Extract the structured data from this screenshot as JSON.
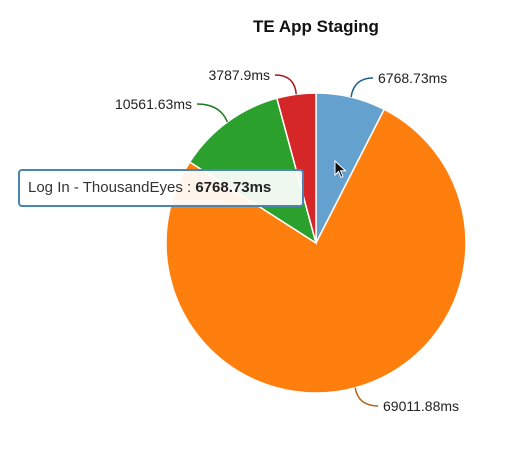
{
  "chart_data": {
    "type": "pie",
    "title": "TE App Staging",
    "unit": "ms",
    "slices": [
      {
        "label": "Log In - ThousandEyes",
        "value": 6768.73,
        "display": "6768.73ms",
        "color": "#64a1cf"
      },
      {
        "label": "",
        "value": 69011.88,
        "display": "69011.88ms",
        "color": "#ff7f0e"
      },
      {
        "label": "",
        "value": 10561.63,
        "display": "10561.63ms",
        "color": "#2ca02c"
      },
      {
        "label": "",
        "value": 3787.9,
        "display": "3787.9ms",
        "color": "#d62728"
      }
    ],
    "leader_colors": [
      "#1f5f8f",
      "#b5651d",
      "#1e7a1e",
      "#a31a1a"
    ]
  },
  "tooltip": {
    "name": "Log In - ThousandEyes",
    "separator": " : ",
    "value": "6768.73ms"
  }
}
